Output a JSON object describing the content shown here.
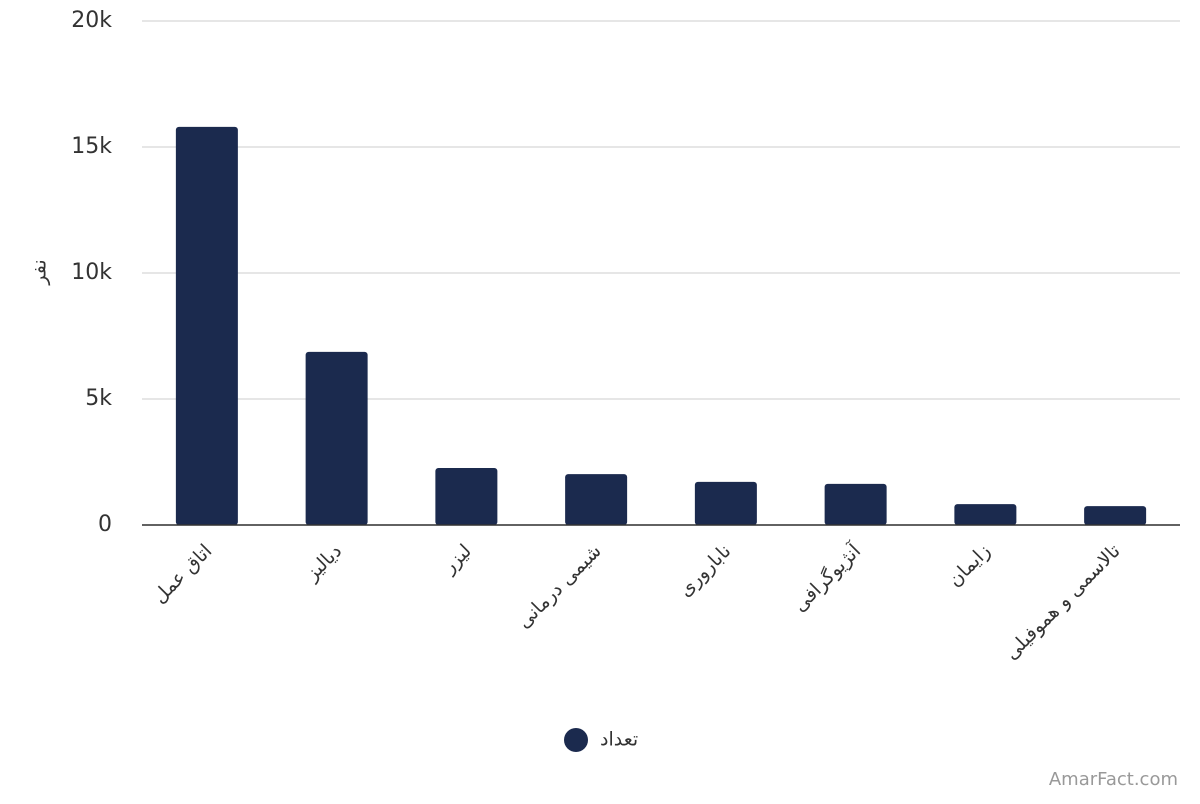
{
  "chart_data": {
    "type": "bar",
    "categories": [
      "اتاق عمل",
      "دیالیز",
      "لیزر",
      "شیمی درمانی",
      "ناباروری",
      "آنژیوگرافی",
      "زایمان",
      "تالاسمی و هموفیلی"
    ],
    "series": [
      {
        "name": "تعداد",
        "color": "#1b2a4e",
        "values": [
          15800,
          6870,
          2260,
          2020,
          1710,
          1630,
          830,
          750
        ]
      }
    ],
    "y_label": "نفر",
    "ylim": [
      0,
      20000
    ],
    "yticks": [
      0,
      {
        "value": 5000,
        "label": "5k"
      },
      {
        "value": 10000,
        "label": "10k"
      },
      {
        "value": 15000,
        "label": "15k"
      },
      {
        "value": 20000,
        "label": "20k"
      }
    ],
    "grid": true,
    "credit": "AmarFact.com"
  }
}
